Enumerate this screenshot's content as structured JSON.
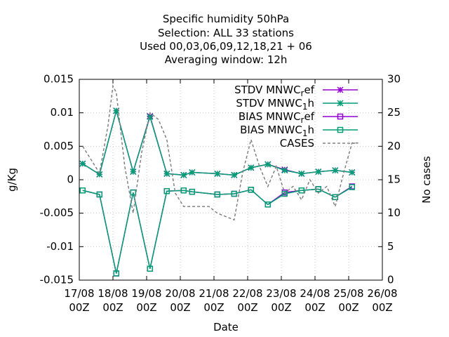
{
  "chart_data": {
    "type": "line",
    "title_lines": [
      "Specific humidity 50hPa",
      "Selection: ALL      33 stations",
      "Used  00,03,06,09,12,18,21  + 06",
      "Averaging window: 12h"
    ],
    "xlabel": "Date",
    "ylabel": "g/Kg",
    "y2label": "No cases",
    "ylim": [
      -0.015,
      0.015
    ],
    "y2lim": [
      0,
      30
    ],
    "xlim": [
      0,
      9
    ],
    "yticks": [
      {
        "value": 0.015,
        "label": "0.015"
      },
      {
        "value": 0.01,
        "label": "0.01"
      },
      {
        "value": 0.005,
        "label": "0.005"
      },
      {
        "value": 0,
        "label": "0"
      },
      {
        "value": -0.005,
        "label": "-0.005"
      },
      {
        "value": -0.01,
        "label": "-0.01"
      },
      {
        "value": -0.015,
        "label": "-0.015"
      }
    ],
    "y2ticks": [
      {
        "value": 30,
        "label": "30"
      },
      {
        "value": 25,
        "label": "25"
      },
      {
        "value": 20,
        "label": "20"
      },
      {
        "value": 15,
        "label": "15"
      },
      {
        "value": 10,
        "label": "10"
      },
      {
        "value": 5,
        "label": "5"
      },
      {
        "value": 0,
        "label": "0"
      }
    ],
    "xticks": [
      {
        "value": 0,
        "date": "17/08",
        "hour": "00Z"
      },
      {
        "value": 1,
        "date": "18/08",
        "hour": "00Z"
      },
      {
        "value": 2,
        "date": "19/08",
        "hour": "00Z"
      },
      {
        "value": 3,
        "date": "20/08",
        "hour": "00Z"
      },
      {
        "value": 4,
        "date": "21/08",
        "hour": "00Z"
      },
      {
        "value": 5,
        "date": "22/08",
        "hour": "00Z"
      },
      {
        "value": 6,
        "date": "23/08",
        "hour": "00Z"
      },
      {
        "value": 7,
        "date": "24/08",
        "hour": "00Z"
      },
      {
        "value": 8,
        "date": "25/08",
        "hour": "00Z"
      },
      {
        "value": 9,
        "date": "26/08",
        "hour": "00Z"
      }
    ],
    "x": [
      0.1,
      0.35,
      0.6,
      0.85,
      1.1,
      1.35,
      1.6,
      1.85,
      2.1,
      2.35,
      2.6,
      2.85,
      3.1,
      3.35,
      3.6,
      3.85,
      4.1,
      4.35,
      4.6,
      4.85,
      5.1,
      5.35,
      5.6,
      5.85,
      6.1,
      6.35,
      6.6,
      6.85,
      7.1,
      7.35,
      7.6,
      7.85,
      8.1,
      8.35
    ],
    "series": [
      {
        "name": "STDV MNWC_ref",
        "legend_main": "STDV MNWC",
        "legend_sub": "r",
        "legend_tail": "ef",
        "color": "#9400d3",
        "marker": "x",
        "axis": "y",
        "points": [
          [
            0.1,
            0.0024
          ],
          [
            0.6,
            0.0008
          ],
          [
            1.1,
            0.0103
          ],
          [
            1.6,
            0.0012
          ],
          [
            2.1,
            0.0095
          ],
          [
            2.6,
            0.0009
          ],
          [
            3.1,
            0.0007
          ],
          [
            3.35,
            0.0011
          ],
          [
            4.1,
            0.0009
          ],
          [
            4.6,
            0.0007
          ],
          [
            5.1,
            0.0018
          ],
          [
            5.6,
            0.0023
          ],
          [
            6.1,
            0.0015
          ],
          [
            6.6,
            0.0009
          ],
          [
            7.1,
            0.0012
          ],
          [
            7.6,
            0.0014
          ],
          [
            8.1,
            0.0011
          ]
        ]
      },
      {
        "name": "STDV MNWC_1h",
        "legend_main": "STDV MNWC",
        "legend_sub": "1",
        "legend_tail": "h",
        "color": "#009e73",
        "marker": "x",
        "axis": "y",
        "points": [
          [
            0.1,
            0.0024
          ],
          [
            0.6,
            0.0008
          ],
          [
            1.1,
            0.0103
          ],
          [
            1.6,
            0.0012
          ],
          [
            2.1,
            0.0094
          ],
          [
            2.6,
            0.0009
          ],
          [
            3.1,
            0.0007
          ],
          [
            3.35,
            0.0011
          ],
          [
            4.1,
            0.0009
          ],
          [
            4.6,
            0.0007
          ],
          [
            5.1,
            0.0018
          ],
          [
            5.6,
            0.0023
          ],
          [
            6.1,
            0.0014
          ],
          [
            6.6,
            0.0009
          ],
          [
            7.1,
            0.0012
          ],
          [
            7.6,
            0.0014
          ],
          [
            8.1,
            0.0011
          ]
        ]
      },
      {
        "name": "BIAS MNWC_ref",
        "legend_main": "BIAS MNWC",
        "legend_sub": "r",
        "legend_tail": "ef",
        "color": "#9400d3",
        "marker": "square",
        "axis": "y",
        "points": [
          [
            0.1,
            -0.0016
          ],
          [
            0.6,
            -0.0022
          ],
          [
            1.1,
            -0.014
          ],
          [
            1.6,
            -0.0019
          ],
          [
            2.1,
            -0.0133
          ],
          [
            2.6,
            -0.0017
          ],
          [
            3.1,
            -0.0016
          ],
          [
            3.35,
            -0.0018
          ],
          [
            4.1,
            -0.0022
          ],
          [
            4.6,
            -0.0021
          ],
          [
            5.1,
            -0.0015
          ],
          [
            5.6,
            -0.0037
          ],
          [
            6.1,
            -0.0019
          ],
          [
            6.6,
            -0.0016
          ],
          [
            7.1,
            -0.0014
          ],
          [
            7.6,
            -0.0026
          ],
          [
            8.1,
            -0.001
          ]
        ]
      },
      {
        "name": "BIAS MNWC_1h",
        "legend_main": "BIAS MNWC",
        "legend_sub": "1",
        "legend_tail": "h",
        "color": "#009e73",
        "marker": "square",
        "axis": "y",
        "points": [
          [
            0.1,
            -0.0016
          ],
          [
            0.6,
            -0.0022
          ],
          [
            1.1,
            -0.014
          ],
          [
            1.6,
            -0.0019
          ],
          [
            2.1,
            -0.0133
          ],
          [
            2.6,
            -0.0017
          ],
          [
            3.1,
            -0.0016
          ],
          [
            3.35,
            -0.0018
          ],
          [
            4.1,
            -0.0022
          ],
          [
            4.6,
            -0.0021
          ],
          [
            5.1,
            -0.0015
          ],
          [
            5.6,
            -0.0037
          ],
          [
            6.1,
            -0.0021
          ],
          [
            6.6,
            -0.0016
          ],
          [
            7.1,
            -0.0014
          ],
          [
            7.6,
            -0.0026
          ],
          [
            8.1,
            -0.0011
          ]
        ]
      },
      {
        "name": "CASES",
        "legend_main": "CASES",
        "legend_sub": "",
        "legend_tail": "",
        "color": "#808080",
        "marker": "none",
        "dashed": true,
        "axis": "y2",
        "points": [
          [
            0.1,
            20
          ],
          [
            0.35,
            18
          ],
          [
            0.6,
            16
          ],
          [
            0.85,
            23
          ],
          [
            1.0,
            29
          ],
          [
            1.1,
            28
          ],
          [
            1.35,
            17
          ],
          [
            1.6,
            10
          ],
          [
            1.85,
            19
          ],
          [
            2.1,
            25
          ],
          [
            2.35,
            24
          ],
          [
            2.6,
            21
          ],
          [
            2.85,
            13
          ],
          [
            3.1,
            11
          ],
          [
            3.35,
            11
          ],
          [
            3.6,
            11
          ],
          [
            3.85,
            11
          ],
          [
            4.1,
            10
          ],
          [
            4.35,
            9.5
          ],
          [
            4.6,
            9
          ],
          [
            4.85,
            16
          ],
          [
            5.1,
            21
          ],
          [
            5.35,
            17
          ],
          [
            5.6,
            14
          ],
          [
            5.85,
            17
          ],
          [
            6.1,
            13
          ],
          [
            6.35,
            14
          ],
          [
            6.6,
            12
          ],
          [
            6.85,
            15
          ],
          [
            7.1,
            13
          ],
          [
            7.35,
            14
          ],
          [
            7.6,
            11
          ],
          [
            7.85,
            16
          ],
          [
            8.1,
            20.5
          ],
          [
            8.35,
            20.5
          ]
        ]
      }
    ],
    "legend_position": "top-right"
  }
}
